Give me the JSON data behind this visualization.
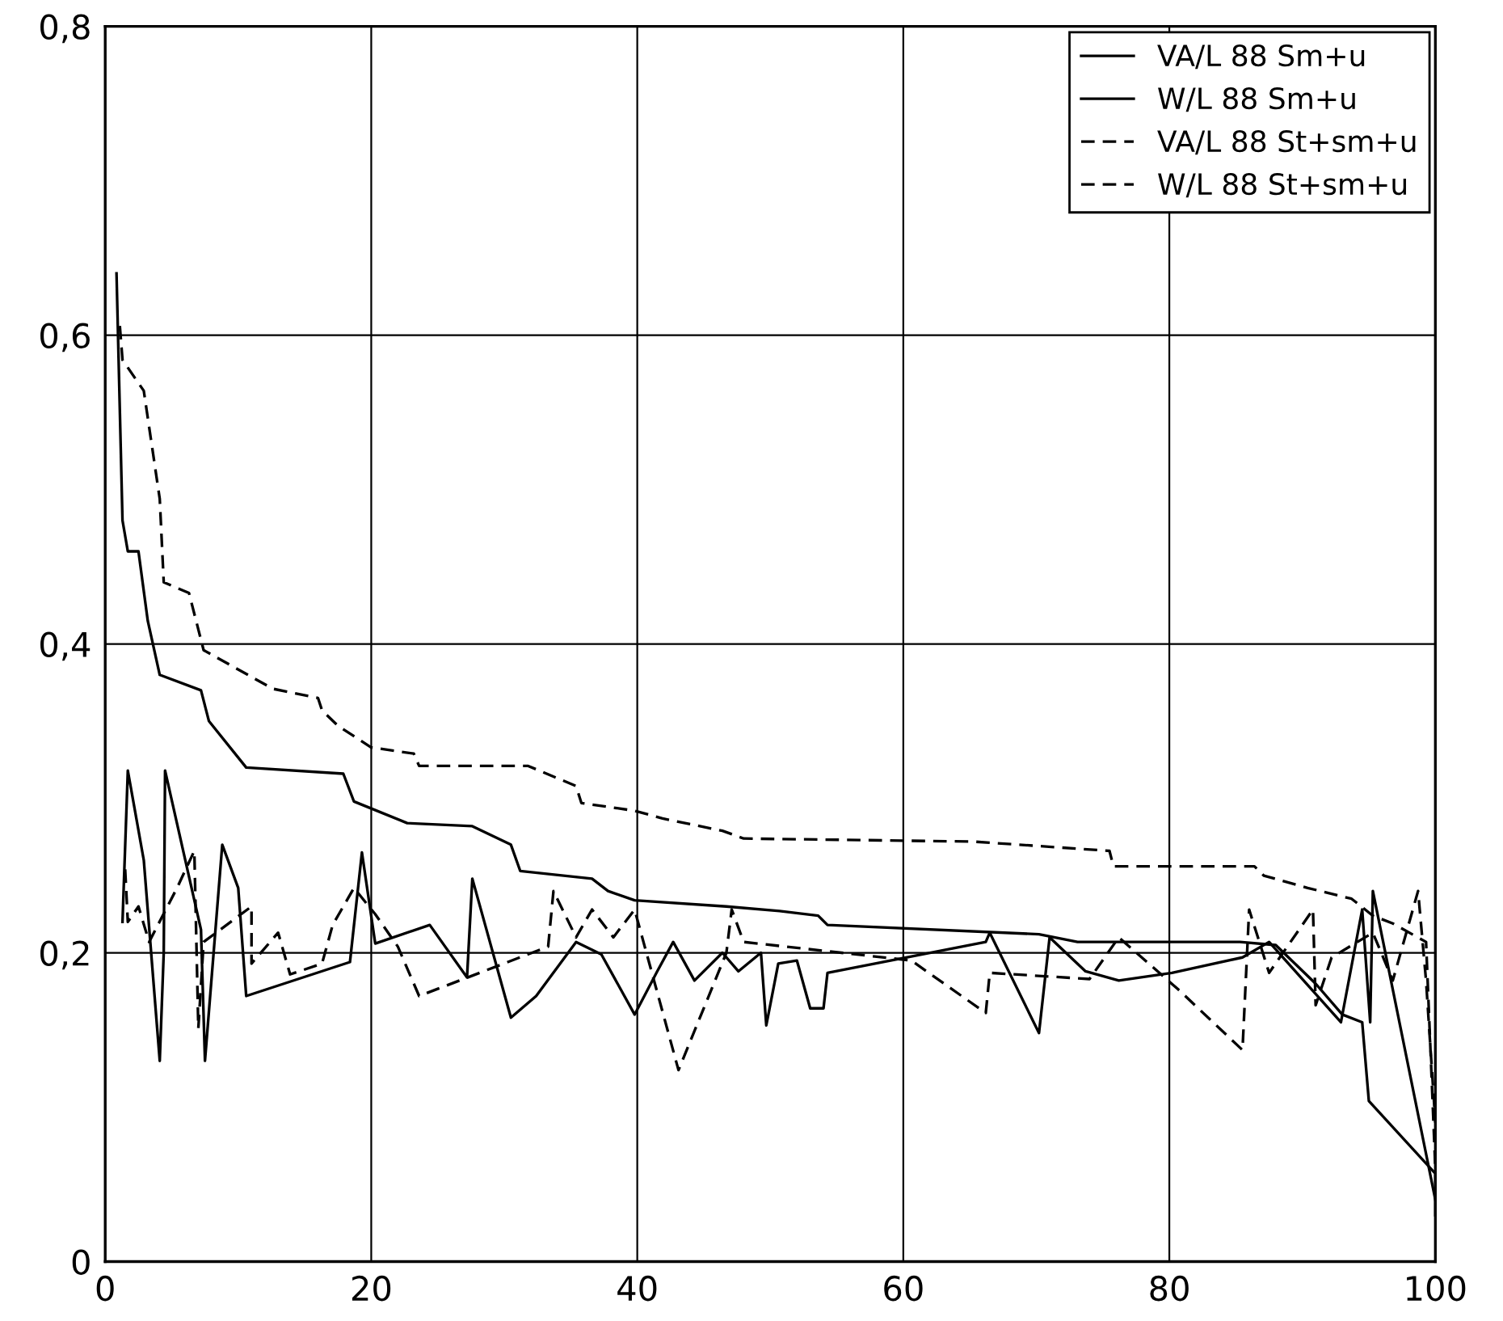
{
  "chart_data": {
    "type": "line",
    "xlim": [
      0,
      100
    ],
    "ylim": [
      0,
      0.8
    ],
    "xticks": [
      0,
      20,
      40,
      60,
      80,
      100
    ],
    "yticks": [
      0,
      {
        "value": 0.2,
        "label": "0,2"
      },
      {
        "value": 0.4,
        "label": "0,4"
      },
      {
        "value": 0.6,
        "label": "0,6"
      },
      {
        "value": 0.8,
        "label": "0,8"
      }
    ],
    "grid": true,
    "legend": "top right",
    "marker": "none",
    "series": [
      {
        "name": "VA/L 88 Sm+u",
        "color": "#000000",
        "line_style": "solid",
        "x": [
          0.85,
          1.3,
          1.7,
          2.5,
          3.2,
          4.1,
          7.2,
          7.8,
          10.6,
          17.9,
          18.7,
          22.7,
          27.6,
          30.5,
          31.2,
          36.6,
          37.8,
          39.8,
          46.7,
          50.7,
          53.6,
          54.3,
          70.2,
          73.1,
          85.3,
          88,
          91,
          93,
          94.5,
          95,
          100,
          100
        ],
        "values": [
          0.64,
          0.48,
          0.46,
          0.46,
          0.415,
          0.38,
          0.37,
          0.35,
          0.32,
          0.316,
          0.298,
          0.284,
          0.282,
          0.27,
          0.253,
          0.248,
          0.24,
          0.234,
          0.23,
          0.227,
          0.224,
          0.218,
          0.212,
          0.207,
          0.207,
          0.205,
          0.18,
          0.16,
          0.155,
          0.104,
          0.057,
          0.03
        ]
      },
      {
        "name": "W/L 88 Sm+u",
        "color": "#000000",
        "line_style": "solid",
        "x": [
          1.3,
          1.7,
          2.9,
          4.1,
          4.4,
          4.5,
          7.2,
          7.5,
          8.8,
          10,
          10.6,
          18.4,
          19.3,
          20.3,
          24.4,
          27.2,
          27.6,
          30.5,
          32.4,
          35.4,
          37.3,
          39.8,
          41.5,
          42.7,
          44.3,
          46.4,
          47.6,
          49.3,
          49.7,
          50.6,
          52,
          53,
          54,
          54.3,
          66.2,
          66.5,
          70.2,
          71,
          73.7,
          76.2,
          80.2,
          85.5,
          87.5,
          92.9,
          94.5,
          95.1,
          95.3,
          100
        ],
        "values": [
          0.22,
          0.318,
          0.26,
          0.13,
          0.2,
          0.318,
          0.215,
          0.13,
          0.27,
          0.242,
          0.172,
          0.194,
          0.265,
          0.206,
          0.218,
          0.184,
          0.248,
          0.158,
          0.172,
          0.207,
          0.199,
          0.16,
          0.188,
          0.207,
          0.182,
          0.2,
          0.188,
          0.2,
          0.153,
          0.193,
          0.195,
          0.164,
          0.164,
          0.187,
          0.207,
          0.213,
          0.148,
          0.21,
          0.188,
          0.182,
          0.187,
          0.197,
          0.207,
          0.155,
          0.228,
          0.155,
          0.24,
          0.04
        ]
      },
      {
        "name": "VA/L 88 St+sm+u",
        "color": "#000000",
        "line_style": "dashed",
        "x": [
          1.1,
          1.3,
          2.9,
          4.1,
          4.4,
          6.3,
          7.4,
          12.6,
          16,
          16.3,
          17.5,
          20,
          23.2,
          23.6,
          31.8,
          35.4,
          35.8,
          39.8,
          41.9,
          46.4,
          48,
          65.3,
          75.5,
          75.8,
          86.4,
          87.1,
          90.4,
          93.7,
          95.3,
          96.8,
          99.3,
          100
        ],
        "values": [
          0.606,
          0.584,
          0.564,
          0.494,
          0.44,
          0.433,
          0.396,
          0.371,
          0.365,
          0.357,
          0.347,
          0.333,
          0.329,
          0.321,
          0.321,
          0.308,
          0.297,
          0.292,
          0.287,
          0.279,
          0.274,
          0.272,
          0.266,
          0.256,
          0.256,
          0.25,
          0.242,
          0.235,
          0.224,
          0.219,
          0.207,
          0.06
        ]
      },
      {
        "name": "W/L 88 St+sm+u",
        "color": "#000000",
        "line_style": "dashed",
        "x": [
          1.5,
          1.7,
          2.5,
          3.3,
          5.4,
          6.7,
          7,
          7.4,
          11,
          11,
          13,
          13.9,
          16.3,
          17.1,
          18.7,
          20.3,
          22,
          23.6,
          33.3,
          33.7,
          35.4,
          36.6,
          38.2,
          39.8,
          43.1,
          46.7,
          47.1,
          48,
          60.6,
          66.2,
          66.5,
          74,
          76.2,
          80.7,
          85.5,
          86,
          87.5,
          90.8,
          91,
          92.2,
          95.3,
          96.8,
          98.7,
          99.3,
          100
        ],
        "values": [
          0.254,
          0.22,
          0.23,
          0.207,
          0.242,
          0.266,
          0.151,
          0.207,
          0.23,
          0.193,
          0.213,
          0.186,
          0.193,
          0.218,
          0.242,
          0.225,
          0.204,
          0.172,
          0.204,
          0.24,
          0.21,
          0.228,
          0.21,
          0.228,
          0.124,
          0.2,
          0.228,
          0.207,
          0.195,
          0.161,
          0.187,
          0.183,
          0.21,
          0.176,
          0.137,
          0.228,
          0.187,
          0.228,
          0.166,
          0.197,
          0.213,
          0.182,
          0.24,
          0.182,
          0.09
        ]
      }
    ]
  }
}
